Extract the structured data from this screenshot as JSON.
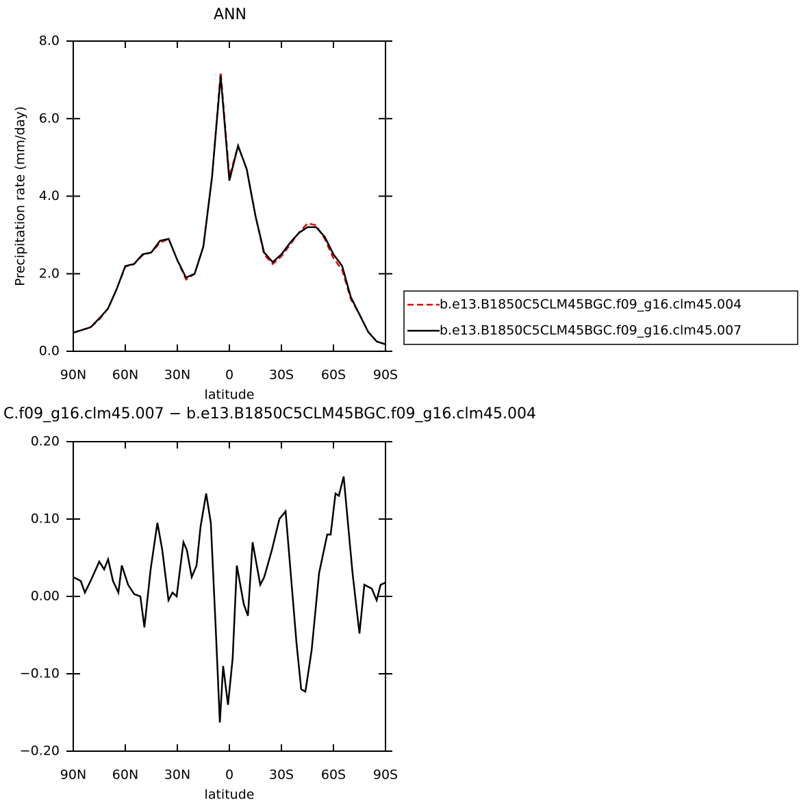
{
  "chart_data": [
    {
      "type": "line",
      "title": "ANN",
      "xlabel": "latitude",
      "ylabel": "Precipitation rate (mm/day)",
      "xlim": [
        90,
        -90
      ],
      "xticks": [
        {
          "value": 90,
          "label": "90N"
        },
        {
          "value": 60,
          "label": "60N"
        },
        {
          "value": 30,
          "label": "30N"
        },
        0,
        {
          "value": -30,
          "label": "30S"
        },
        {
          "value": -60,
          "label": "60S"
        },
        {
          "value": -90,
          "label": "90S"
        }
      ],
      "ylim": [
        0,
        8
      ],
      "yticks": [
        {
          "value": 0,
          "label": "0.0"
        },
        {
          "value": 2,
          "label": "2.0"
        },
        {
          "value": 4,
          "label": "4.0"
        },
        {
          "value": 6,
          "label": "6.0"
        },
        {
          "value": 8,
          "label": "8.0"
        }
      ],
      "legend": "right",
      "x": [
        90,
        85,
        80,
        75,
        70,
        65,
        60,
        55,
        50,
        45,
        40,
        35,
        30,
        25,
        20,
        15,
        10,
        5,
        0,
        -5,
        -10,
        -15,
        -20,
        -25,
        -30,
        -35,
        -40,
        -45,
        -50,
        -55,
        -60,
        -65,
        -70,
        -75,
        -80,
        -85,
        -90
      ],
      "series": [
        {
          "name": "b.e13.B1850C5CLM45BGC.f09_g16.clm45.004",
          "color": "#e00000",
          "style": "dashed",
          "values": [
            0.48,
            0.55,
            0.62,
            0.82,
            1.1,
            1.6,
            2.18,
            2.25,
            2.48,
            2.55,
            2.8,
            2.9,
            2.35,
            1.85,
            2.0,
            2.7,
            4.5,
            7.2,
            4.5,
            5.3,
            4.7,
            3.5,
            2.5,
            2.25,
            2.45,
            2.75,
            3.05,
            3.3,
            3.25,
            2.9,
            2.4,
            2.1,
            1.35,
            0.95,
            0.5,
            0.25,
            0.18
          ]
        },
        {
          "name": "b.e13.B1850C5CLM45BGC.f09_g16.clm45.007",
          "color": "#000000",
          "style": "solid",
          "values": [
            0.48,
            0.55,
            0.62,
            0.85,
            1.1,
            1.6,
            2.2,
            2.25,
            2.5,
            2.55,
            2.85,
            2.9,
            2.35,
            1.9,
            2.0,
            2.7,
            4.5,
            7.1,
            4.4,
            5.3,
            4.7,
            3.5,
            2.55,
            2.3,
            2.5,
            2.8,
            3.05,
            3.2,
            3.2,
            2.95,
            2.5,
            2.2,
            1.4,
            0.95,
            0.5,
            0.25,
            0.18
          ]
        }
      ]
    },
    {
      "type": "line",
      "title": "C.f09_g16.clm45.007 − b.e13.B1850C5CLM45BGC.f09_g16.clm45.004",
      "xlabel": "latitude",
      "xlim": [
        90,
        -90
      ],
      "xticks": [
        {
          "value": 90,
          "label": "90N"
        },
        {
          "value": 60,
          "label": "60N"
        },
        {
          "value": 30,
          "label": "30N"
        },
        0,
        {
          "value": -30,
          "label": "30S"
        },
        {
          "value": -60,
          "label": "60S"
        },
        {
          "value": -90,
          "label": "90S"
        }
      ],
      "ylim": [
        -0.2,
        0.2
      ],
      "yticks": [
        {
          "value": -0.2,
          "label": "−0.20"
        },
        {
          "value": -0.1,
          "label": "−0.10"
        },
        {
          "value": 0,
          "label": "0.00"
        },
        {
          "value": 0.1,
          "label": "0.10"
        },
        {
          "value": 0.2,
          "label": "0.20"
        }
      ],
      "x": [
        90,
        85.7,
        83.3,
        80,
        75,
        72.2,
        69.9,
        67.1,
        64,
        62,
        58.4,
        54.9,
        51.3,
        49,
        45.4,
        41.5,
        38.7,
        35.1,
        32.8,
        30.4,
        26.5,
        24.5,
        21.7,
        18.9,
        16.6,
        13.4,
        10.7,
        7.9,
        5.5,
        3.6,
        0.8,
        -1.9,
        -4.3,
        -8.3,
        -10.7,
        -13.4,
        -17.8,
        -20.1,
        -24.5,
        -28.8,
        -32.4,
        -38.7,
        -41.4,
        -43.8,
        -47.4,
        -51.7,
        -56.4,
        -58.4,
        -61.2,
        -63.1,
        -65.9,
        -71,
        -75,
        -77.8,
        -82.1,
        -84.9,
        -87.2,
        -90
      ],
      "series": [
        {
          "color": "#000000",
          "style": "solid",
          "values": [
            0.025,
            0.02,
            0.005,
            0.02,
            0.045,
            0.035,
            0.048,
            0.02,
            0.005,
            0.04,
            0.015,
            0.003,
            0.0,
            -0.04,
            0.035,
            0.095,
            0.06,
            -0.005,
            0.005,
            0.0,
            0.07,
            0.06,
            0.025,
            0.04,
            0.09,
            0.133,
            0.095,
            -0.04,
            -0.163,
            -0.09,
            -0.14,
            -0.08,
            0.04,
            -0.01,
            -0.025,
            0.07,
            0.015,
            0.025,
            0.06,
            0.1,
            0.11,
            -0.06,
            -0.12,
            -0.123,
            -0.07,
            0.03,
            0.08,
            0.08,
            0.133,
            0.13,
            0.155,
            0.03,
            -0.048,
            0.015,
            0.01,
            -0.005,
            0.015,
            0.018
          ]
        }
      ]
    }
  ]
}
